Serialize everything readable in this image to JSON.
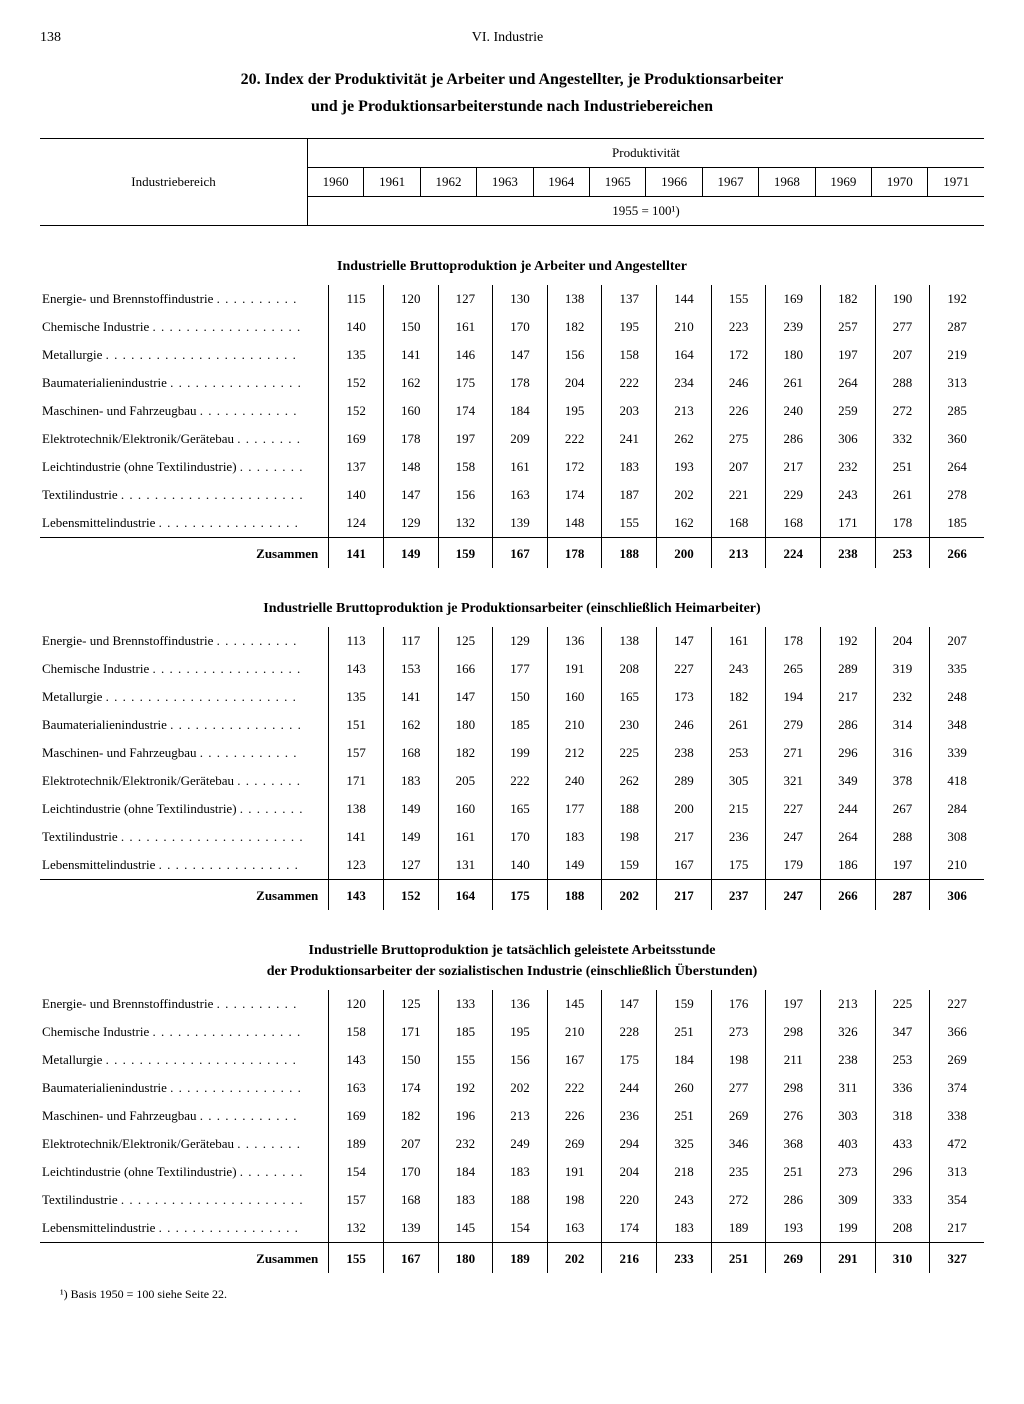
{
  "page_number": "138",
  "chapter": "VI. Industrie",
  "title_line1": "20. Index der Produktivität je Arbeiter und Angestellter, je Produktionsarbeiter",
  "title_line2": "und je Produktionsarbeiterstunde nach Industriebereichen",
  "header": {
    "rowhead": "Industriebereich",
    "group": "Produktivität",
    "basis": "1955 = 100¹)",
    "years": [
      "1960",
      "1961",
      "1962",
      "1963",
      "1964",
      "1965",
      "1966",
      "1967",
      "1968",
      "1969",
      "1970",
      "1971"
    ]
  },
  "row_labels": [
    "Energie- und Brennstoffindustrie",
    "Chemische Industrie",
    "Metallurgie",
    "Baumaterialienindustrie",
    "Maschinen- und Fahrzeugbau",
    "Elektrotechnik/Elektronik/Gerätebau",
    "Leichtindustrie (ohne Textilindustrie)",
    "Textilindustrie",
    "Lebensmittelindustrie"
  ],
  "sum_label": "Zusammen",
  "sections": [
    {
      "title": "Industrielle Bruttoproduktion je Arbeiter und Angestellter",
      "rows": [
        [
          115,
          120,
          127,
          130,
          138,
          137,
          144,
          155,
          169,
          182,
          190,
          192
        ],
        [
          140,
          150,
          161,
          170,
          182,
          195,
          210,
          223,
          239,
          257,
          277,
          287
        ],
        [
          135,
          141,
          146,
          147,
          156,
          158,
          164,
          172,
          180,
          197,
          207,
          219
        ],
        [
          152,
          162,
          175,
          178,
          204,
          222,
          234,
          246,
          261,
          264,
          288,
          313
        ],
        [
          152,
          160,
          174,
          184,
          195,
          203,
          213,
          226,
          240,
          259,
          272,
          285
        ],
        [
          169,
          178,
          197,
          209,
          222,
          241,
          262,
          275,
          286,
          306,
          332,
          360
        ],
        [
          137,
          148,
          158,
          161,
          172,
          183,
          193,
          207,
          217,
          232,
          251,
          264
        ],
        [
          140,
          147,
          156,
          163,
          174,
          187,
          202,
          221,
          229,
          243,
          261,
          278
        ],
        [
          124,
          129,
          132,
          139,
          148,
          155,
          162,
          168,
          168,
          171,
          178,
          185
        ]
      ],
      "sum": [
        141,
        149,
        159,
        167,
        178,
        188,
        200,
        213,
        224,
        238,
        253,
        266
      ]
    },
    {
      "title": "Industrielle Bruttoproduktion je Produktionsarbeiter (einschließlich Heimarbeiter)",
      "rows": [
        [
          113,
          117,
          125,
          129,
          136,
          138,
          147,
          161,
          178,
          192,
          204,
          207
        ],
        [
          143,
          153,
          166,
          177,
          191,
          208,
          227,
          243,
          265,
          289,
          319,
          335
        ],
        [
          135,
          141,
          147,
          150,
          160,
          165,
          173,
          182,
          194,
          217,
          232,
          248
        ],
        [
          151,
          162,
          180,
          185,
          210,
          230,
          246,
          261,
          279,
          286,
          314,
          348
        ],
        [
          157,
          168,
          182,
          199,
          212,
          225,
          238,
          253,
          271,
          296,
          316,
          339
        ],
        [
          171,
          183,
          205,
          222,
          240,
          262,
          289,
          305,
          321,
          349,
          378,
          418
        ],
        [
          138,
          149,
          160,
          165,
          177,
          188,
          200,
          215,
          227,
          244,
          267,
          284
        ],
        [
          141,
          149,
          161,
          170,
          183,
          198,
          217,
          236,
          247,
          264,
          288,
          308
        ],
        [
          123,
          127,
          131,
          140,
          149,
          159,
          167,
          175,
          179,
          186,
          197,
          210
        ]
      ],
      "sum": [
        143,
        152,
        164,
        175,
        188,
        202,
        217,
        237,
        247,
        266,
        287,
        306
      ]
    },
    {
      "title": "Industrielle Bruttoproduktion je tatsächlich geleistete Arbeitsstunde\nder Produktionsarbeiter der sozialistischen Industrie (einschließlich Überstunden)",
      "rows": [
        [
          120,
          125,
          133,
          136,
          145,
          147,
          159,
          176,
          197,
          213,
          225,
          227
        ],
        [
          158,
          171,
          185,
          195,
          210,
          228,
          251,
          273,
          298,
          326,
          347,
          366
        ],
        [
          143,
          150,
          155,
          156,
          167,
          175,
          184,
          198,
          211,
          238,
          253,
          269
        ],
        [
          163,
          174,
          192,
          202,
          222,
          244,
          260,
          277,
          298,
          311,
          336,
          374
        ],
        [
          169,
          182,
          196,
          213,
          226,
          236,
          251,
          269,
          276,
          303,
          318,
          338
        ],
        [
          189,
          207,
          232,
          249,
          269,
          294,
          325,
          346,
          368,
          403,
          433,
          472
        ],
        [
          154,
          170,
          184,
          183,
          191,
          204,
          218,
          235,
          251,
          273,
          296,
          313
        ],
        [
          157,
          168,
          183,
          188,
          198,
          220,
          243,
          272,
          286,
          309,
          333,
          354
        ],
        [
          132,
          139,
          145,
          154,
          163,
          174,
          183,
          189,
          193,
          199,
          208,
          217
        ]
      ],
      "sum": [
        155,
        167,
        180,
        189,
        202,
        216,
        233,
        251,
        269,
        291,
        310,
        327
      ]
    }
  ],
  "footnote": "¹) Basis 1950 = 100 siehe Seite 22."
}
